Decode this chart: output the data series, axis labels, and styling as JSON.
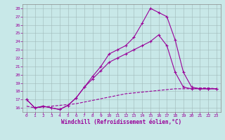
{
  "xlabel": "Windchill (Refroidissement éolien,°C)",
  "background_color": "#c8e8e8",
  "line_color": "#990099",
  "grid_color": "#b0c8c8",
  "xlim": [
    -0.5,
    23.5
  ],
  "ylim": [
    15.5,
    28.5
  ],
  "xticks": [
    0,
    1,
    2,
    3,
    4,
    5,
    6,
    7,
    8,
    9,
    10,
    11,
    12,
    13,
    14,
    15,
    16,
    17,
    18,
    19,
    20,
    21,
    22,
    23
  ],
  "yticks": [
    16,
    17,
    18,
    19,
    20,
    21,
    22,
    23,
    24,
    25,
    26,
    27,
    28
  ],
  "curve1_x": [
    0,
    1,
    2,
    3,
    4,
    5,
    6,
    7,
    8,
    9,
    10,
    11,
    12,
    13,
    14,
    15,
    16,
    17,
    18,
    19,
    20,
    21,
    22,
    23
  ],
  "curve1_y": [
    17.0,
    16.0,
    16.2,
    16.0,
    15.8,
    16.3,
    17.2,
    18.5,
    19.8,
    21.0,
    22.5,
    23.0,
    23.5,
    24.5,
    26.2,
    28.0,
    27.5,
    27.0,
    24.2,
    20.3,
    18.5,
    18.3,
    18.3,
    18.3
  ],
  "curve2_x": [
    0,
    1,
    2,
    3,
    4,
    5,
    6,
    7,
    8,
    9,
    10,
    11,
    12,
    13,
    14,
    15,
    16,
    17,
    18,
    19,
    20,
    21,
    22,
    23
  ],
  "curve2_y": [
    17.0,
    16.0,
    16.2,
    16.0,
    15.8,
    16.3,
    17.2,
    18.5,
    19.5,
    20.5,
    21.5,
    22.0,
    22.5,
    23.0,
    23.5,
    24.0,
    24.8,
    23.5,
    20.3,
    18.5,
    18.3,
    18.3,
    18.3,
    18.3
  ],
  "curve3_x": [
    0,
    1,
    2,
    3,
    4,
    5,
    6,
    7,
    8,
    9,
    10,
    11,
    12,
    13,
    14,
    15,
    16,
    17,
    18,
    19,
    20,
    21,
    22,
    23
  ],
  "curve3_y": [
    16.2,
    16.0,
    16.1,
    16.2,
    16.3,
    16.4,
    16.5,
    16.7,
    16.9,
    17.1,
    17.3,
    17.5,
    17.7,
    17.8,
    17.9,
    18.0,
    18.1,
    18.2,
    18.3,
    18.3,
    18.3,
    18.4,
    18.4,
    18.3
  ]
}
